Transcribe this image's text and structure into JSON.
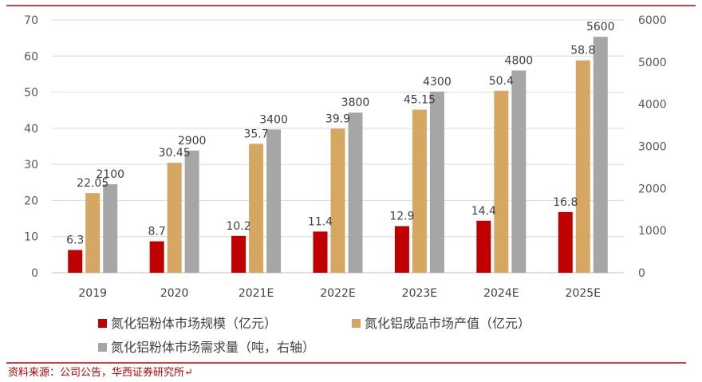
{
  "chart_data": {
    "type": "bar",
    "categories": [
      "2019",
      "2020",
      "2021E",
      "2022E",
      "2023E",
      "2024E",
      "2025E"
    ],
    "series": [
      {
        "name": "氮化铝粉体市场规模（亿元）",
        "axis": "left",
        "color": "#c00000",
        "values": [
          6.3,
          8.7,
          10.2,
          11.4,
          12.9,
          14.4,
          16.8
        ],
        "labels": [
          "6.3",
          "8.7",
          "10.2",
          "11.4",
          "12.9",
          "14.4",
          "16.8"
        ]
      },
      {
        "name": "氮化铝成品市场产值（亿元）",
        "axis": "left",
        "color": "#d5a763",
        "values": [
          22.05,
          30.45,
          35.7,
          39.9,
          45.15,
          50.4,
          58.8
        ],
        "labels": [
          "22.05",
          "30.45",
          "35.7",
          "39.9",
          "45.15",
          "50.4",
          "58.8"
        ]
      },
      {
        "name": "氮化铝粉体市场需求量（吨，右轴）",
        "axis": "right",
        "color": "#a6a6a6",
        "values": [
          2100,
          2900,
          3400,
          3800,
          4300,
          4800,
          5600
        ],
        "labels": [
          "2100",
          "2900",
          "3400",
          "3800",
          "4300",
          "4800",
          "5600"
        ]
      }
    ],
    "yleft": {
      "min": 0,
      "max": 70,
      "ticks": [
        "0",
        "10",
        "20",
        "30",
        "40",
        "50",
        "60",
        "70"
      ]
    },
    "yright": {
      "min": 0,
      "max": 6000,
      "ticks": [
        "0",
        "1000",
        "2000",
        "3000",
        "4000",
        "5000",
        "6000"
      ]
    },
    "grid": true,
    "legend_position": "bottom"
  },
  "source": "资料来源：公司公告，华西证券研究所↵",
  "colors": {
    "accent_line": "#c00000",
    "grid": "#d9d9d9"
  }
}
